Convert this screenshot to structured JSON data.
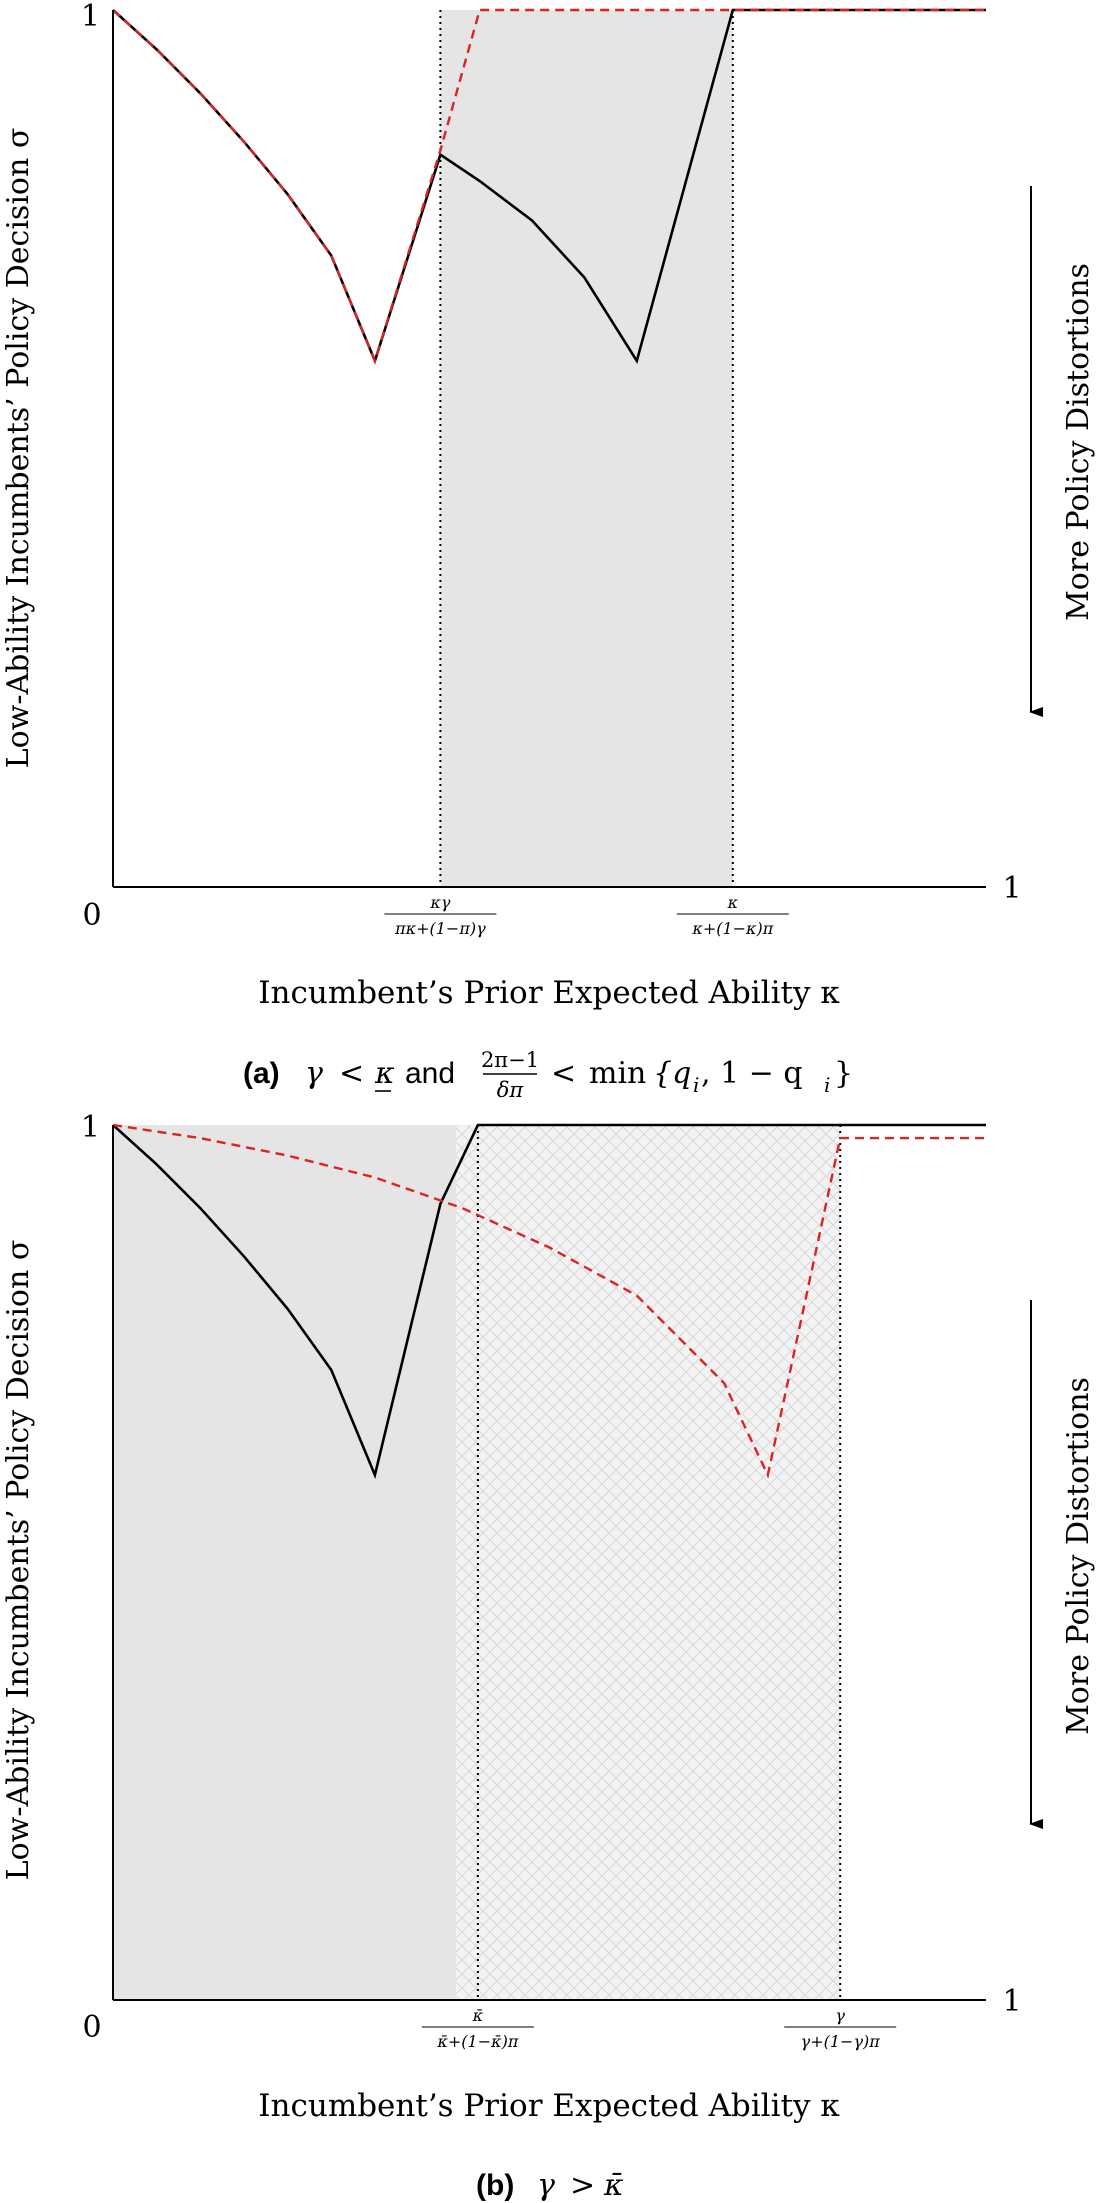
{
  "chart_data": [
    {
      "type": "line",
      "panel_tag": "(a)",
      "caption": {
        "tag": "(a)",
        "gamma": "γ",
        "lt1": "<",
        "kappa_lower": "κ",
        "and": "and",
        "frac_num": "2π−1",
        "frac_den": "δπ",
        "lt2": "<",
        "min": "min",
        "set": "{q",
        "sub_i1": "i",
        "comma": ", 1 − q",
        "sub_i2": "i",
        "close": "}"
      },
      "ylabel": "Low-Ability Incumbents’ Policy Decision σ",
      "xlabel": "Incumbent’s Prior Expected Ability κ",
      "side_label": "More Policy Distortions",
      "xlim": [
        0,
        1
      ],
      "ylim": [
        0,
        1
      ],
      "x_axis_labels": {
        "zero": "0",
        "one": "1"
      },
      "y_axis_labels": {
        "one": "1"
      },
      "ticks": [
        {
          "x": 0.375,
          "numerator": "κγ",
          "denominator": "πκ+(1−π)γ"
        },
        {
          "x": 0.71,
          "numerator": "κ",
          "denominator": "κ+(1−κ)π"
        }
      ],
      "shaded_regions": [
        {
          "x0": 0.375,
          "x1": 0.71,
          "pattern": "solid",
          "color": "#e5e5e5"
        }
      ],
      "series": [
        {
          "style": "solid",
          "color": "#000000",
          "x": [
            0,
            0.05,
            0.1,
            0.15,
            0.2,
            0.25,
            0.3,
            0.375,
            0.42,
            0.48,
            0.54,
            0.6,
            0.71,
            1.0
          ],
          "y": [
            1,
            0.955,
            0.905,
            0.85,
            0.79,
            0.72,
            0.6,
            0.835,
            0.805,
            0.76,
            0.695,
            0.6,
            1,
            1
          ]
        },
        {
          "style": "dashed",
          "color": "#dd2222",
          "x": [
            0,
            0.05,
            0.1,
            0.15,
            0.2,
            0.25,
            0.3,
            0.375,
            0.42,
            1.0
          ],
          "y": [
            1,
            0.955,
            0.905,
            0.85,
            0.79,
            0.72,
            0.6,
            0.84,
            1,
            1
          ]
        }
      ]
    },
    {
      "type": "line",
      "panel_tag": "(b)",
      "caption": {
        "tag": "(b)",
        "gamma": "γ",
        "gt": ">",
        "kappa_bar": "κ̄"
      },
      "ylabel": "Low-Ability Incumbents’ Policy Decision σ",
      "xlabel": "Incumbent’s Prior Expected Ability κ",
      "side_label": "More Policy Distortions",
      "xlim": [
        0,
        1
      ],
      "ylim": [
        0,
        1
      ],
      "x_axis_labels": {
        "zero": "0",
        "one": "1"
      },
      "y_axis_labels": {
        "one": "1"
      },
      "ticks": [
        {
          "x": 0.418,
          "numerator": "κ̄",
          "denominator": "κ̄+(1−κ̄)π"
        },
        {
          "x": 0.833,
          "numerator": "γ",
          "denominator": "γ+(1−γ)π"
        }
      ],
      "shaded_regions": [
        {
          "x0": 0,
          "x1": 0.393,
          "pattern": "solid",
          "color": "#e5e5e5"
        },
        {
          "x0": 0.393,
          "x1": 0.833,
          "pattern": "crosshatch",
          "color": "#ececec"
        }
      ],
      "series": [
        {
          "style": "solid",
          "color": "#000000",
          "x": [
            0,
            0.05,
            0.1,
            0.15,
            0.2,
            0.25,
            0.3,
            0.375,
            0.418,
            1.0
          ],
          "y": [
            1,
            0.955,
            0.905,
            0.85,
            0.79,
            0.72,
            0.6,
            0.91,
            1,
            1
          ]
        },
        {
          "style": "dashed",
          "color": "#dd2222",
          "x": [
            0,
            0.1,
            0.2,
            0.3,
            0.4,
            0.5,
            0.6,
            0.7,
            0.75,
            0.833,
            1.0
          ],
          "y": [
            1,
            0.985,
            0.965,
            0.94,
            0.905,
            0.86,
            0.805,
            0.705,
            0.6,
            0.985,
            0.985
          ]
        }
      ]
    }
  ]
}
